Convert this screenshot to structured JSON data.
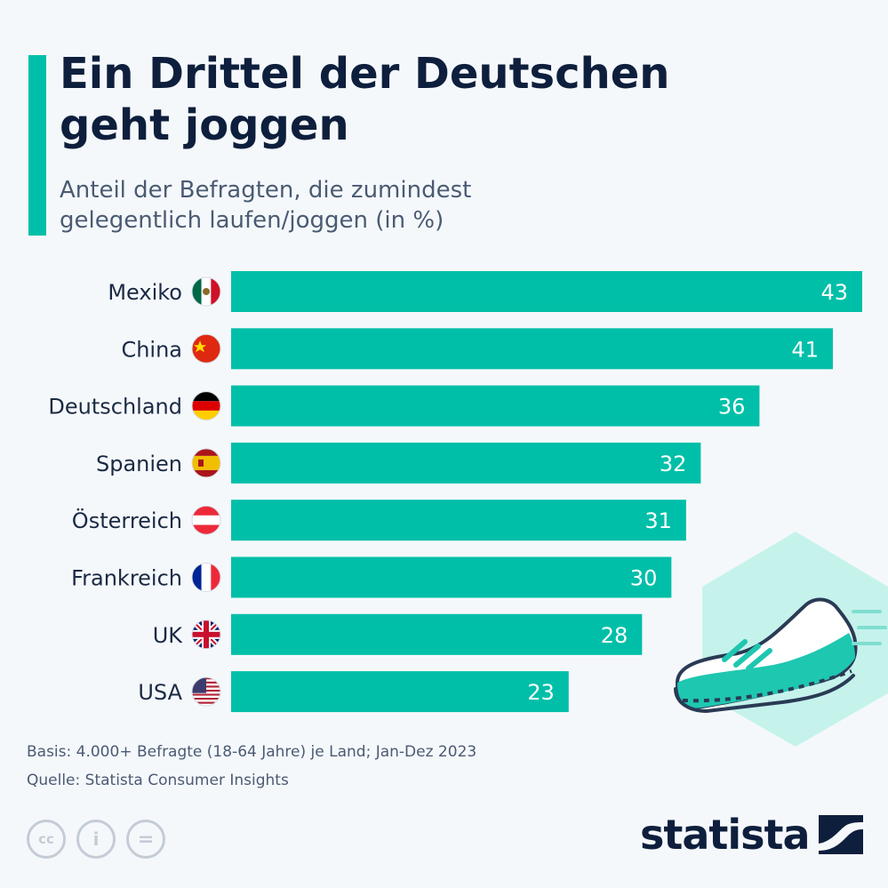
{
  "header": {
    "title_line1": "Ein Drittel der Deutschen",
    "title_line2": "geht joggen",
    "subtitle_line1": "Anteil der Befragten, die zumindest",
    "subtitle_line2": "gelegentlich laufen/joggen (in %)"
  },
  "chart_data": {
    "type": "bar",
    "orientation": "horizontal",
    "categories": [
      "Mexiko",
      "China",
      "Deutschland",
      "Spanien",
      "Österreich",
      "Frankreich",
      "UK",
      "USA"
    ],
    "values": [
      43,
      41,
      36,
      32,
      31,
      30,
      28,
      23
    ],
    "title": "Ein Drittel der Deutschen geht joggen",
    "subtitle": "Anteil der Befragten, die zumindest gelegentlich laufen/joggen (in %)",
    "xlabel": "",
    "ylabel": "",
    "xlim": [
      0,
      43
    ],
    "grid": false,
    "legend": "none",
    "bar_color": "#00bfa8",
    "flags": [
      "mexico-flag-icon",
      "china-flag-icon",
      "germany-flag-icon",
      "spain-flag-icon",
      "austria-flag-icon",
      "france-flag-icon",
      "uk-flag-icon",
      "usa-flag-icon"
    ]
  },
  "footer": {
    "basis": "Basis: 4.000+ Befragte (18-64 Jahre) je Land; Jan-Dez 2023",
    "source": "Quelle: Statista Consumer Insights"
  },
  "brand": {
    "logo_text": "statista",
    "accent": "#00bfa8",
    "navy": "#0e1f3d"
  },
  "license_icons": [
    "cc",
    "i",
    "="
  ]
}
